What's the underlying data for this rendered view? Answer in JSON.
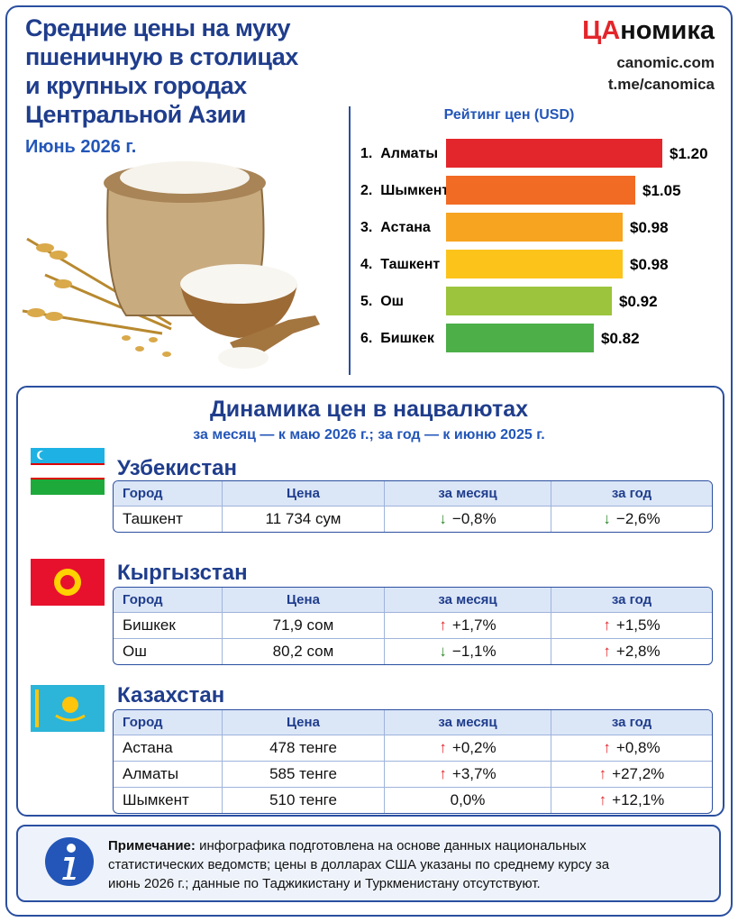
{
  "header": {
    "title_lines": [
      "Средние цены на муку",
      "пшеничную в столицах",
      "и крупных городах",
      "Центральной Азии"
    ],
    "subtitle": "Июнь 2026 г.",
    "brand_accent": "ЦА",
    "brand_rest": "номика",
    "links": [
      "canomic.com",
      "t.me/canomica"
    ]
  },
  "chart_data": {
    "type": "bar",
    "orientation": "horizontal",
    "title": "Рейтинг цен (USD)",
    "categories": [
      "1.  Алматы",
      "2.  Шымкент",
      "3.  Астана",
      "4.  Ташкент",
      "5.  Ош",
      "6.  Бишкек"
    ],
    "values": [
      1.2,
      1.05,
      0.98,
      0.98,
      0.92,
      0.82
    ],
    "value_labels": [
      "$1.20",
      "$1.05",
      "$0.98",
      "$0.98",
      "$0.92",
      "$0.82"
    ],
    "colors": [
      "#e3262b",
      "#f26b24",
      "#f7a420",
      "#fcc31a",
      "#9cc43c",
      "#4caf48"
    ]
  },
  "dynamics": {
    "title": "Динамика цен в нацвалютах",
    "subtitle": "за месяц — к маю 2026 г.; за год — к июню 2025 г.",
    "countries": [
      {
        "name": "Узбекистан",
        "columns": [
          "Город",
          "Цена",
          "за месяц",
          "за год"
        ],
        "rows": [
          [
            "Ташкент",
            "11 734 сум",
            "−0,8%",
            "−2,6%"
          ]
        ]
      },
      {
        "name": "Кыргызстан",
        "columns": [
          "Город",
          "Цена",
          "за месяц",
          "за год"
        ],
        "rows": [
          [
            "Бишкек",
            "71,9 сом",
            "+1,7%",
            "+1,5%"
          ],
          [
            "Ош",
            "80,2 сом",
            "−1,1%",
            "+2,8%"
          ]
        ]
      },
      {
        "name": "Казахстан",
        "columns": [
          "Город",
          "Цена",
          "за месяц",
          "за год"
        ],
        "rows": [
          [
            "Астана",
            "478 тенге",
            "+0,2%",
            "+0,8%"
          ],
          [
            "Алматы",
            "585 тенге",
            "+3,7%",
            "+27,2%"
          ],
          [
            "Шымкент",
            "510 тенге",
            "0,0%",
            "+12,1%"
          ]
        ]
      }
    ]
  },
  "note": {
    "label": "Примечание:",
    "text": "инфографика подготовлена на основе данных национальных статистических ведомств; цены в долларах США указаны по среднему курсу за июнь 2026 г.; данные по Таджикистану и Туркменистану отсутствуют."
  }
}
